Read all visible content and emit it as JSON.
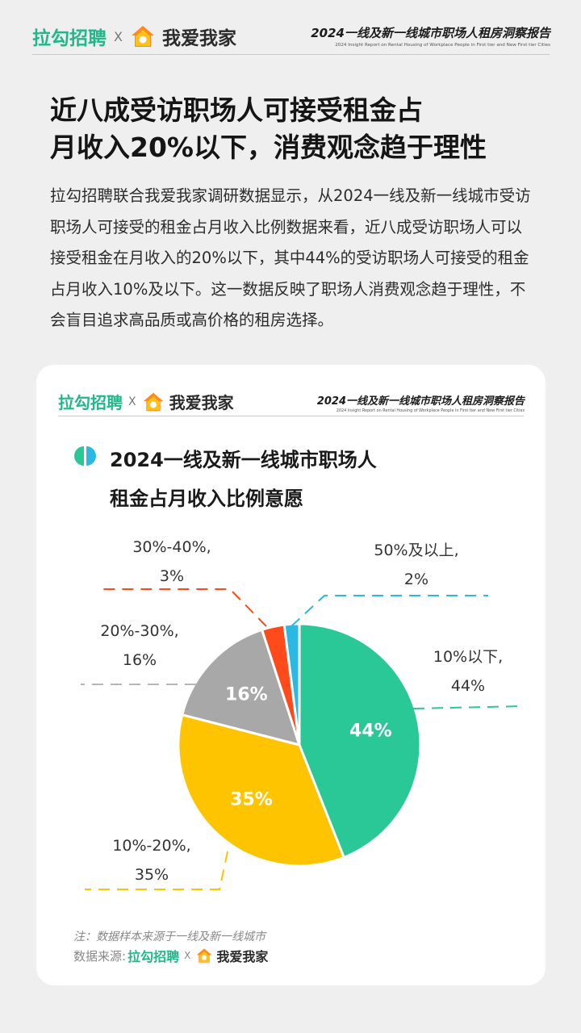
{
  "header": {
    "brand_left": "拉勾招聘",
    "brand_sep": "X",
    "brand_right": "我爱我家",
    "report_title": "2024一线及新一线城市职场人租房洞察报告",
    "report_subtitle": "2024 Insight Report on Rental Housing of Workplace People in First tier and New First tier Cities"
  },
  "headline": {
    "line1": "近八成受访职场人可接受租金占",
    "line2": "月收入20%以下，消费观念趋于理性"
  },
  "body_text": "拉勾招聘联合我爱我家调研数据显示，从2024一线及新一线城市受访职场人可接受的租金占月收入比例数据来看，近八成受访职场人可以接受租金在月收入的20%以下，其中44%的受访职场人可接受的租金占月收入10%及以下。这一数据反映了职场人消费观念趋于理性，不会盲目追求高品质或高价格的租房选择。",
  "card": {
    "brand_left": "拉勾招聘",
    "brand_sep": "X",
    "brand_right": "我爱我家",
    "report_title": "2024一线及新一线城市职场人租房洞察报告",
    "report_subtitle": "2024 Insight Report on Rental Housing of Workplace People in First tier and New First tier Cities",
    "footnote": "注：数据样本来源于一线及新一线城市",
    "source_label": "数据来源:",
    "source_brand_left": "拉勾招聘",
    "source_sep": "X",
    "source_brand_right": "我爱我家"
  },
  "colors": {
    "brand_green": "#1fb88a",
    "slice_10_below": "#2bc897",
    "slice_10_20": "#ffc400",
    "slice_20_30": "#a8a8a8",
    "slice_30_40": "#ff4a1c",
    "slice_50_up": "#2bb8e3"
  },
  "chart_data": {
    "type": "pie",
    "title_line1": "2024一线及新一线城市职场人",
    "title_line2": "租金占月收入比例意愿",
    "slices": [
      {
        "name": "10%以下",
        "value": 44,
        "outer_label": "10%以下,",
        "outer_value": "44%",
        "inner_label": "44%",
        "color": "#2bc897"
      },
      {
        "name": "10%-20%",
        "value": 35,
        "outer_label": "10%-20%,",
        "outer_value": "35%",
        "inner_label": "35%",
        "color": "#ffc400"
      },
      {
        "name": "20%-30%",
        "value": 16,
        "outer_label": "20%-30%,",
        "outer_value": "16%",
        "inner_label": "16%",
        "color": "#a8a8a8"
      },
      {
        "name": "30%-40%",
        "value": 3,
        "outer_label": "30%-40%,",
        "outer_value": "3%",
        "inner_label": "",
        "color": "#ff4a1c"
      },
      {
        "name": "50%及以上",
        "value": 2,
        "outer_label": "50%及以上,",
        "outer_value": "2%",
        "inner_label": "",
        "color": "#2bb8e3"
      }
    ]
  }
}
